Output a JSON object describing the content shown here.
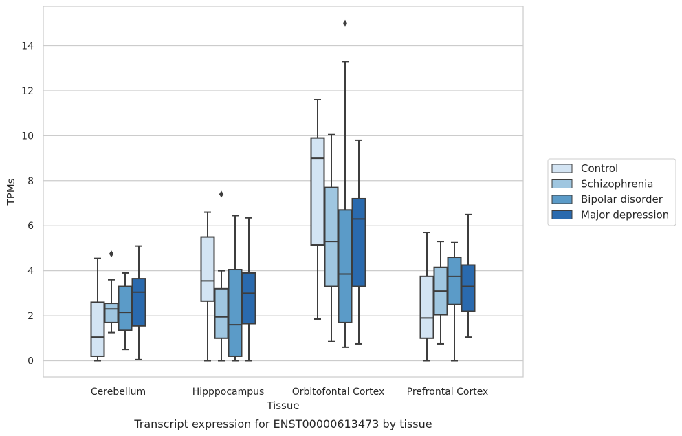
{
  "chart_data": {
    "type": "box",
    "caption": "Transcript expression for ENST00000613473 by tissue",
    "xlabel": "Tissue",
    "ylabel": "TPMs",
    "ylim": [
      -0.7,
      15.8
    ],
    "yticks": [
      0,
      2,
      4,
      6,
      8,
      10,
      12,
      14
    ],
    "grid": true,
    "legend_position": "right",
    "categories": [
      "Cerebellum",
      "Hipppocampus",
      "Orbitofontal Cortex",
      "Prefrontal Cortex"
    ],
    "series": [
      {
        "name": "Control",
        "color": "#d3e4f3",
        "boxes": [
          {
            "whisker_low": 0.0,
            "q1": 0.2,
            "median": 1.05,
            "q3": 2.6,
            "whisker_high": 4.55,
            "outliers": []
          },
          {
            "whisker_low": 0.0,
            "q1": 2.65,
            "median": 3.55,
            "q3": 5.5,
            "whisker_high": 6.6,
            "outliers": []
          },
          {
            "whisker_low": 1.85,
            "q1": 5.15,
            "median": 9.0,
            "q3": 9.9,
            "whisker_high": 11.6,
            "outliers": []
          },
          {
            "whisker_low": 0.0,
            "q1": 1.0,
            "median": 1.9,
            "q3": 3.75,
            "whisker_high": 5.7,
            "outliers": []
          }
        ]
      },
      {
        "name": "Schizophrenia",
        "color": "#9fc6e0",
        "boxes": [
          {
            "whisker_low": 1.25,
            "q1": 1.7,
            "median": 2.3,
            "q3": 2.55,
            "whisker_high": 3.6,
            "outliers": [
              4.75
            ]
          },
          {
            "whisker_low": 0.0,
            "q1": 1.0,
            "median": 1.95,
            "q3": 3.2,
            "whisker_high": 4.0,
            "outliers": [
              7.4
            ]
          },
          {
            "whisker_low": 0.85,
            "q1": 3.3,
            "median": 5.3,
            "q3": 7.7,
            "whisker_high": 10.05,
            "outliers": []
          },
          {
            "whisker_low": 0.75,
            "q1": 2.05,
            "median": 3.1,
            "q3": 4.15,
            "whisker_high": 5.3,
            "outliers": []
          }
        ]
      },
      {
        "name": "Bipolar disorder",
        "color": "#5b9bc8",
        "boxes": [
          {
            "whisker_low": 0.5,
            "q1": 1.35,
            "median": 2.15,
            "q3": 3.3,
            "whisker_high": 3.9,
            "outliers": []
          },
          {
            "whisker_low": 0.0,
            "q1": 0.2,
            "median": 1.6,
            "q3": 4.05,
            "whisker_high": 6.45,
            "outliers": []
          },
          {
            "whisker_low": 0.6,
            "q1": 1.7,
            "median": 3.85,
            "q3": 6.7,
            "whisker_high": 13.3,
            "outliers": [
              15.0
            ]
          },
          {
            "whisker_low": 0.0,
            "q1": 2.5,
            "median": 3.75,
            "q3": 4.6,
            "whisker_high": 5.25,
            "outliers": []
          }
        ]
      },
      {
        "name": "Major depression",
        "color": "#2a6aae",
        "boxes": [
          {
            "whisker_low": 0.05,
            "q1": 1.55,
            "median": 3.05,
            "q3": 3.65,
            "whisker_high": 5.1,
            "outliers": []
          },
          {
            "whisker_low": 0.0,
            "q1": 1.65,
            "median": 3.0,
            "q3": 3.9,
            "whisker_high": 6.35,
            "outliers": []
          },
          {
            "whisker_low": 0.75,
            "q1": 3.3,
            "median": 6.3,
            "q3": 7.2,
            "whisker_high": 9.8,
            "outliers": []
          },
          {
            "whisker_low": 1.05,
            "q1": 2.2,
            "median": 3.3,
            "q3": 4.25,
            "whisker_high": 6.5,
            "outliers": []
          }
        ]
      }
    ]
  }
}
